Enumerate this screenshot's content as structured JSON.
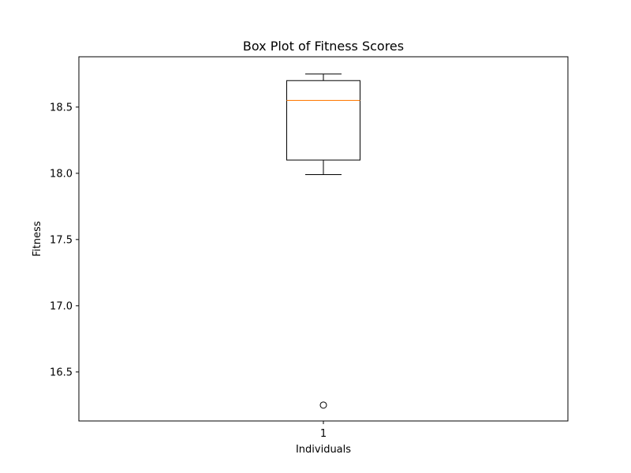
{
  "chart_data": {
    "type": "box",
    "title": "Box Plot of Fitness Scores",
    "xlabel": "Individuals",
    "ylabel": "Fitness",
    "categories": [
      "1"
    ],
    "ylim": [
      16.13,
      18.88
    ],
    "yticks": [
      {
        "value": 16.5,
        "label": "16.5"
      },
      {
        "value": 17.0,
        "label": "17.0"
      },
      {
        "value": 17.5,
        "label": "17.5"
      },
      {
        "value": 18.0,
        "label": "18.0"
      },
      {
        "value": 18.5,
        "label": "18.5"
      }
    ],
    "series": [
      {
        "whisker_low": 17.99,
        "q1": 18.1,
        "median": 18.55,
        "q3": 18.7,
        "whisker_high": 18.75,
        "outliers": [
          16.25
        ]
      }
    ],
    "grid": false,
    "legend": "none"
  },
  "colors": {
    "box": "#000000",
    "median": "#ff7f0e",
    "axes": "#000000"
  }
}
